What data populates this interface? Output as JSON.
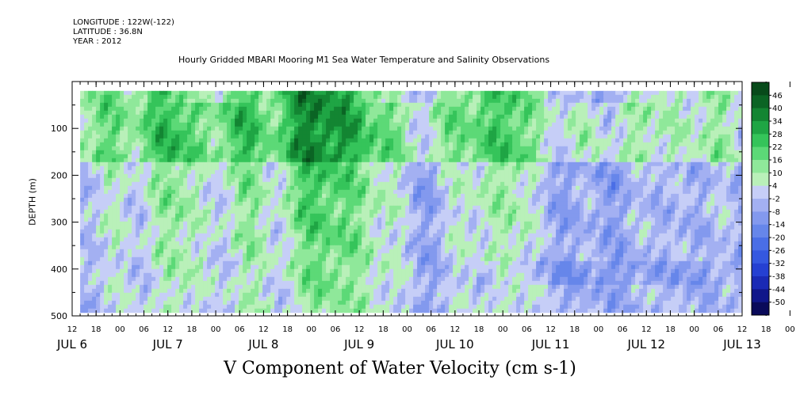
{
  "header": {
    "longitude": "LONGITUDE : 122W(-122)",
    "latitude": "LATITUDE : 36.8N",
    "year": "YEAR : 2012"
  },
  "chart_data": {
    "type": "heatmap",
    "title": "Hourly Gridded MBARI Mooring M1 Sea Water Temperature and Salinity Observations",
    "variable_title": "V Component of Water Velocity (cm s-1)",
    "ylabel": "DEPTH (m)",
    "xlabel": "",
    "y_axis": {
      "range": [
        500,
        0
      ],
      "reversed": true,
      "ticks": [
        100,
        200,
        300,
        400,
        500
      ],
      "minor_step": 50
    },
    "x_axis": {
      "start": "2012-07-06T12:00",
      "end": "2012-07-13T12:00",
      "hour_labels": [
        "12",
        "18",
        "00",
        "06",
        "12",
        "18",
        "00",
        "06",
        "12",
        "18",
        "00",
        "06",
        "12",
        "18",
        "00",
        "06",
        "12",
        "18",
        "00",
        "06",
        "12",
        "18",
        "00",
        "06",
        "12",
        "18",
        "00",
        "06",
        "12",
        "18",
        "00",
        "06",
        "12"
      ],
      "day_labels": [
        "JUL 6",
        "JUL 7",
        "JUL 8",
        "JUL 9",
        "JUL 10",
        "JUL 11",
        "JUL 12",
        "JUL 13"
      ],
      "day_label_hours": [
        "2012-07-06T12:00",
        "2012-07-07T12:00",
        "2012-07-08T12:00",
        "2012-07-09T12:00",
        "2012-07-10T12:00",
        "2012-07-11T12:00",
        "2012-07-12T12:00",
        "2012-07-13T12:00"
      ]
    },
    "data_extent": {
      "x_start": "2012-07-06T14:00",
      "depth_min": 20,
      "depth_max": 490
    },
    "colorbar": {
      "levels": [
        -50,
        -44,
        -38,
        -32,
        -26,
        -20,
        -14,
        -8,
        -2,
        4,
        10,
        16,
        22,
        28,
        34,
        40,
        46
      ],
      "labels": [
        "46",
        "40",
        "34",
        "28",
        "22",
        "16",
        "10",
        "4",
        "-2",
        "-8",
        "-14",
        "-20",
        "-26",
        "-32",
        "-38",
        "-44",
        "-50"
      ],
      "colors": [
        "#0a0a5a",
        "#10168a",
        "#1a2ab5",
        "#2540d2",
        "#3558e0",
        "#4a6ee6",
        "#6686ea",
        "#8399ee",
        "#a3b0f2",
        "#c6cef7",
        "#b9f0b9",
        "#8fe89a",
        "#5cd977",
        "#35c45a",
        "#1fa544",
        "#138532",
        "#0b6424",
        "#074a1a"
      ]
    },
    "bands": [
      {
        "time": "2012-07-06T12:00",
        "strength": 0.3
      },
      {
        "time": "2012-07-06T22:00",
        "strength": 0.6
      },
      {
        "time": "2012-07-07T11:00",
        "strength": 0.75
      },
      {
        "time": "2012-07-07T20:00",
        "strength": 0.5
      },
      {
        "time": "2012-07-08T08:00",
        "strength": 0.8
      },
      {
        "time": "2012-07-08T23:00",
        "strength": 1.0
      },
      {
        "time": "2012-07-09T10:00",
        "strength": 0.85
      },
      {
        "time": "2012-07-09T21:00",
        "strength": 0.55
      },
      {
        "time": "2012-07-10T12:00",
        "strength": 0.55
      },
      {
        "time": "2012-07-10T23:00",
        "strength": 0.7
      },
      {
        "time": "2012-07-11T08:00",
        "strength": 0.45
      },
      {
        "time": "2012-07-11T21:00",
        "strength": 0.35
      },
      {
        "time": "2012-07-12T10:00",
        "strength": 0.4
      },
      {
        "time": "2012-07-12T20:00",
        "strength": 0.35
      },
      {
        "time": "2012-07-13T07:00",
        "strength": 0.45
      }
    ]
  }
}
